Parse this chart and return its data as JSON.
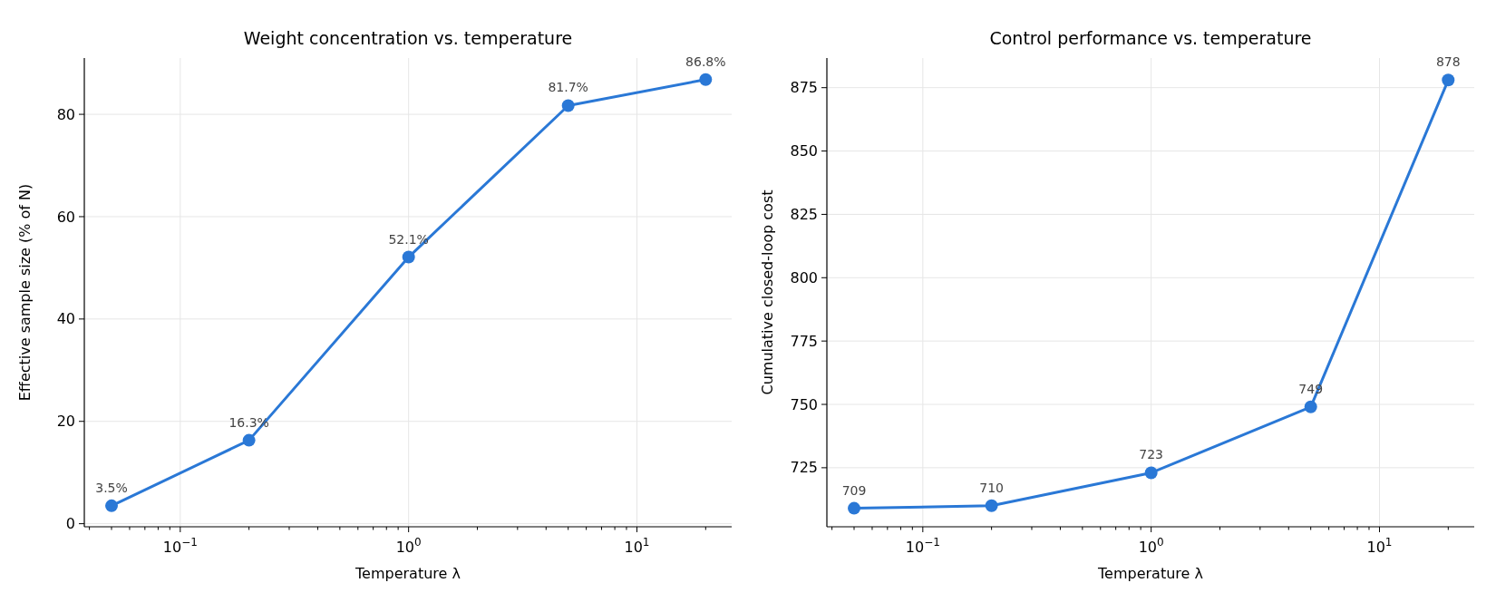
{
  "chart_data": [
    {
      "type": "line",
      "title": "Weight concentration vs. temperature",
      "xlabel": "Temperature λ",
      "ylabel": "Effective sample size (% of N)",
      "log": "x",
      "grid": true,
      "marker": "circle",
      "line_style": "solid",
      "x": [
        0.05,
        0.2,
        1,
        5,
        20
      ],
      "series": [
        {
          "color": "#2a78d6",
          "values": [
            3.5,
            16.3,
            52.1,
            81.7,
            86.8
          ],
          "value_labels": [
            "3.5%",
            "16.3%",
            "52.1%",
            "81.7%",
            "86.8%"
          ]
        }
      ],
      "xlim": [
        0.038,
        26
      ],
      "ylim": [
        -0.6,
        91
      ],
      "yticks": [
        0,
        20,
        40,
        60,
        80
      ],
      "xticks": [
        {
          "value": 0.04,
          "label": null
        },
        {
          "value": 0.05,
          "label": null
        },
        {
          "value": 0.06,
          "label": null
        },
        {
          "value": 0.07,
          "label": null
        },
        {
          "value": 0.08,
          "label": null
        },
        {
          "value": 0.09,
          "label": null
        },
        {
          "value": 0.1,
          "label": "10$^{−1}$"
        },
        {
          "value": 0.2,
          "label": null
        },
        {
          "value": 0.3,
          "label": null
        },
        {
          "value": 0.4,
          "label": null
        },
        {
          "value": 0.5,
          "label": null
        },
        {
          "value": 0.6,
          "label": null
        },
        {
          "value": 0.7,
          "label": null
        },
        {
          "value": 0.8,
          "label": null
        },
        {
          "value": 0.9,
          "label": null
        },
        {
          "value": 1,
          "label": "10$^{0}$"
        },
        {
          "value": 2,
          "label": null
        },
        {
          "value": 3,
          "label": null
        },
        {
          "value": 4,
          "label": null
        },
        {
          "value": 5,
          "label": null
        },
        {
          "value": 6,
          "label": null
        },
        {
          "value": 7,
          "label": null
        },
        {
          "value": 8,
          "label": null
        },
        {
          "value": 9,
          "label": null
        },
        {
          "value": 10,
          "label": "10$^{1}$"
        },
        {
          "value": 20,
          "label": null
        }
      ]
    },
    {
      "type": "line",
      "title": "Control performance vs. temperature",
      "xlabel": "Temperature λ",
      "ylabel": "Cumulative closed-loop cost",
      "log": "x",
      "grid": true,
      "marker": "circle",
      "line_style": "solid",
      "data_labels": true,
      "x": [
        0.05,
        0.2,
        1,
        5,
        20
      ],
      "series": [
        {
          "color": "#2a78d6",
          "values": [
            709,
            710,
            723,
            749,
            878
          ]
        }
      ],
      "xlim": [
        0.038,
        26
      ],
      "ylim": [
        701.7,
        886.7
      ],
      "yticks": [
        725,
        750,
        775,
        800,
        825,
        850,
        875
      ],
      "xticks": [
        {
          "value": 0.04,
          "label": null
        },
        {
          "value": 0.05,
          "label": null
        },
        {
          "value": 0.06,
          "label": null
        },
        {
          "value": 0.07,
          "label": null
        },
        {
          "value": 0.08,
          "label": null
        },
        {
          "value": 0.09,
          "label": null
        },
        {
          "value": 0.1,
          "label": "10$^{−1}$"
        },
        {
          "value": 0.2,
          "label": null
        },
        {
          "value": 0.3,
          "label": null
        },
        {
          "value": 0.4,
          "label": null
        },
        {
          "value": 0.5,
          "label": null
        },
        {
          "value": 0.6,
          "label": null
        },
        {
          "value": 0.7,
          "label": null
        },
        {
          "value": 0.8,
          "label": null
        },
        {
          "value": 0.9,
          "label": null
        },
        {
          "value": 1,
          "label": "10$^{0}$"
        },
        {
          "value": 2,
          "label": null
        },
        {
          "value": 3,
          "label": null
        },
        {
          "value": 4,
          "label": null
        },
        {
          "value": 5,
          "label": null
        },
        {
          "value": 6,
          "label": null
        },
        {
          "value": 7,
          "label": null
        },
        {
          "value": 8,
          "label": null
        },
        {
          "value": 9,
          "label": null
        },
        {
          "value": 10,
          "label": "10$^{1}$"
        },
        {
          "value": 20,
          "label": null
        }
      ]
    }
  ]
}
